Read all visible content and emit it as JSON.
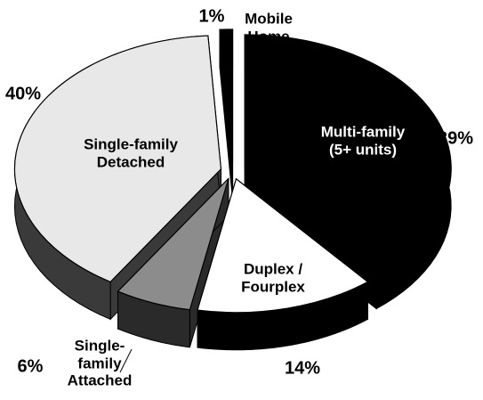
{
  "chart_data": {
    "type": "pie",
    "categories": [
      "Multi-family (5+ units)",
      "Duplex / Fourplex",
      "Single-family Attached",
      "Single-family Detached",
      "Mobile Home"
    ],
    "values": [
      39,
      14,
      6,
      40,
      1
    ],
    "value_labels": [
      "39%",
      "14%",
      "6%",
      "40%",
      "1%"
    ],
    "colors": [
      "#000000",
      "#ffffff",
      "#8c8c8c",
      "#e8e8e8",
      "#000000"
    ]
  }
}
